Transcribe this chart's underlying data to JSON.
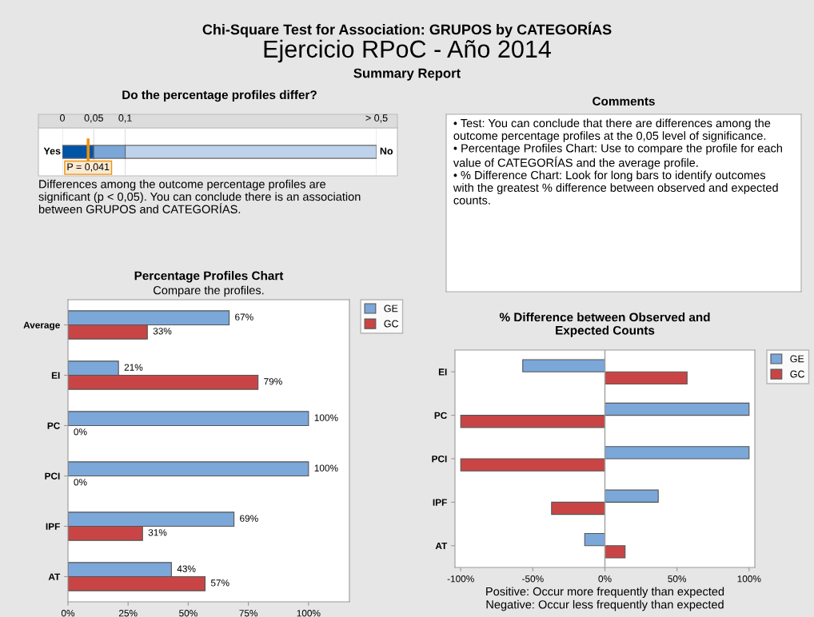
{
  "chart_data": [
    {
      "type": "other",
      "title": "Chi-Square Test for Association: GRUPOS by CATEGORÍAS",
      "subtitle": "Ejercicio RPoC - Año 2014",
      "annotations": [
        "Summary Report"
      ]
    },
    {
      "type": "bar",
      "orientation": "horizontal",
      "stacked": true,
      "title": "Do the percentage profiles differ?",
      "categories": [
        null
      ],
      "xlim": [
        0,
        0.5
      ],
      "xticks": [
        0,
        {
          "value": 0.05,
          "label": "0,05"
        },
        {
          "value": 0.1,
          "label": "0,1"
        },
        {
          "value": 0.5,
          "label": "> 0,5"
        }
      ],
      "series": [
        {
          "color": "#0054a6",
          "values": [
            0.05
          ]
        },
        {
          "color": "#7aa6d8",
          "values": [
            0.05
          ]
        },
        {
          "color": "#bed2eb",
          "values": [
            0.4
          ]
        }
      ],
      "ref_lines": [
        {
          "axis": "x",
          "value": 0.041,
          "label": "P = 0,041",
          "color": "#f0920a"
        }
      ],
      "annotations": [
        "Yes",
        "No",
        "Differences among the outcome percentage profiles are significant (p < 0,05). You can conclude there is an association between GRUPOS and CATEGORÍAS."
      ]
    },
    {
      "type": "other",
      "title": "Comments",
      "annotations": [
        "• Test: You can conclude that there are differences among the outcome percentage profiles at the 0,05 level of significance.",
        "• Percentage Profiles Chart: Use to compare the profile for each value of CATEGORÍAS and the average profile.",
        "• % Difference Chart: Look for long bars to identify outcomes with the greatest % difference between observed and expected counts."
      ]
    },
    {
      "type": "bar",
      "orientation": "horizontal",
      "title": "Percentage Profiles Chart",
      "subtitle": "Compare the profiles.",
      "categories": [
        "Average",
        "EI",
        "PC",
        "PCI",
        "IPF",
        "AT"
      ],
      "xlim": [
        0,
        117
      ],
      "xticks": [
        {
          "value": 0,
          "label": "0%"
        },
        {
          "value": 25,
          "label": "25%"
        },
        {
          "value": 50,
          "label": "50%"
        },
        {
          "value": 75,
          "label": "75%"
        },
        {
          "value": 100,
          "label": "100%"
        }
      ],
      "legend": "top right",
      "series": [
        {
          "name": "GE",
          "color": "#7ba7d9",
          "values": [
            67,
            21,
            100,
            100,
            69,
            43
          ],
          "value_labels": [
            "67%",
            "21%",
            "100%",
            "100%",
            "69%",
            "43%"
          ]
        },
        {
          "name": "GC",
          "color": "#c94545",
          "values": [
            33,
            79,
            0,
            0,
            31,
            57
          ],
          "value_labels": [
            "33%",
            "79%",
            "0%",
            "0%",
            "31%",
            "57%"
          ]
        }
      ]
    },
    {
      "type": "bar",
      "orientation": "horizontal",
      "title": "% Difference between Observed and\nExpected Counts",
      "categories": [
        "EI",
        "PC",
        "PCI",
        "IPF",
        "AT"
      ],
      "xlim": [
        -104,
        104
      ],
      "xticks": [
        {
          "value": -100,
          "label": "-100%"
        },
        {
          "value": -50,
          "label": "-50%"
        },
        {
          "value": 0,
          "label": "0%"
        },
        {
          "value": 50,
          "label": "50%"
        },
        {
          "value": 100,
          "label": "100%"
        }
      ],
      "legend": "top right",
      "ref_lines": [
        {
          "axis": "x",
          "value": 0,
          "color": "#a0a0a0"
        }
      ],
      "series": [
        {
          "name": "GE",
          "color": "#7ba7d9",
          "values": [
            -57,
            100,
            100,
            37,
            -14
          ]
        },
        {
          "name": "GC",
          "color": "#c94545",
          "values": [
            57,
            -100,
            -100,
            -37,
            14
          ]
        }
      ],
      "annotations": [
        "Positive: Occur more frequently than expected",
        "Negative: Occur less frequently than expected"
      ]
    }
  ]
}
